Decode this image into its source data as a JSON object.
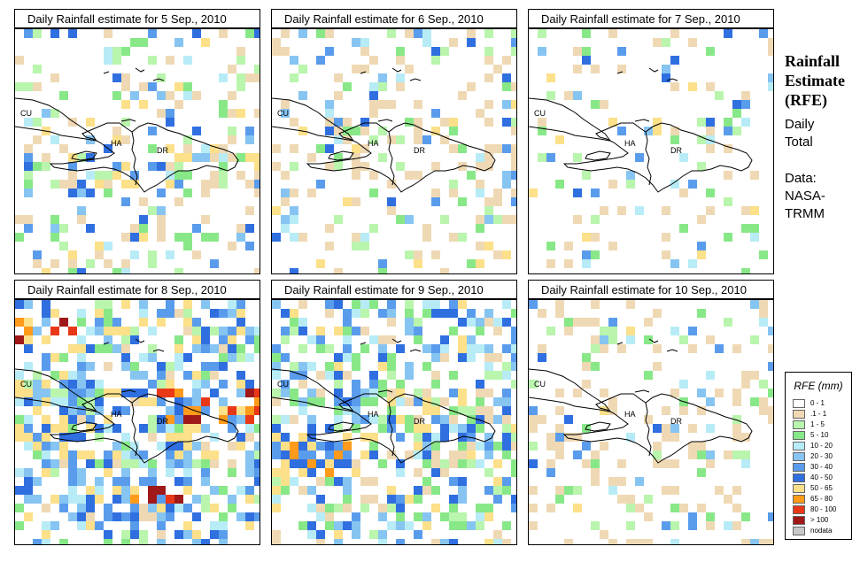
{
  "panels": [
    {
      "title": "Daily Rainfall estimate for  5 Sep., 2010",
      "seed": 11,
      "density": 0.26,
      "intensity": 0.9
    },
    {
      "title": "Daily Rainfall estimate for  6 Sep., 2010",
      "seed": 23,
      "density": 0.22,
      "intensity": 0.6
    },
    {
      "title": "Daily Rainfall estimate for  7 Sep., 2010",
      "seed": 37,
      "density": 0.13,
      "intensity": 0.9
    },
    {
      "title": "Daily Rainfall estimate for  8 Sep., 2010",
      "seed": 51,
      "density": 0.52,
      "intensity": 2.2
    },
    {
      "title": "Daily Rainfall estimate for  9 Sep., 2010",
      "seed": 67,
      "density": 0.48,
      "intensity": 1.5
    },
    {
      "title": "Daily Rainfall estimate for  10 Sep., 2010",
      "seed": 83,
      "density": 0.2,
      "intensity": 0.4
    }
  ],
  "map_labels": {
    "cuba": "CU",
    "haiti": "HA",
    "dominican_republic": "DR"
  },
  "side": {
    "heading_1": "Rainfall",
    "heading_2": "Estimate",
    "heading_3": "(RFE)",
    "daily": "Daily",
    "total": "Total",
    "data_label": "Data:",
    "source_1": "NASA-",
    "source_2": "TRMM"
  },
  "legend": {
    "title": "RFE (mm)",
    "items": [
      {
        "label": "0 - 1",
        "color": "#ffffff"
      },
      {
        "label": ".1 - 1",
        "color": "#efd9b4"
      },
      {
        "label": "1 - 5",
        "color": "#b9f5ad"
      },
      {
        "label": "5 - 10",
        "color": "#88e888"
      },
      {
        "label": "10 - 20",
        "color": "#b7ecf7"
      },
      {
        "label": "20 - 30",
        "color": "#86c4f2"
      },
      {
        "label": "30 - 40",
        "color": "#5a9cec"
      },
      {
        "label": "40 - 50",
        "color": "#2f6fe0"
      },
      {
        "label": "50 - 65",
        "color": "#fce08a"
      },
      {
        "label": "65 - 80",
        "color": "#ff9a1a"
      },
      {
        "label": "80 - 100",
        "color": "#e83818"
      },
      {
        "label": "> 100",
        "color": "#a01818"
      },
      {
        "label": "nodata",
        "color": "#c8c8c8"
      }
    ]
  }
}
